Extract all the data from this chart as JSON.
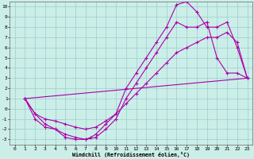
{
  "xlabel": "Windchill (Refroidissement éolien,°C)",
  "bg_color": "#cceee8",
  "grid_color": "#99cccc",
  "line_color": "#aa00aa",
  "xlim": [
    -0.5,
    23.5
  ],
  "ylim": [
    -3.5,
    10.5
  ],
  "xticks": [
    0,
    1,
    2,
    3,
    4,
    5,
    6,
    7,
    8,
    9,
    10,
    11,
    12,
    13,
    14,
    15,
    16,
    17,
    18,
    19,
    20,
    21,
    22,
    23
  ],
  "yticks": [
    -3,
    -2,
    -1,
    0,
    1,
    2,
    3,
    4,
    5,
    6,
    7,
    8,
    9,
    10
  ],
  "line1_x": [
    1,
    2,
    3,
    4,
    5,
    6,
    7,
    7.5,
    8,
    9,
    10,
    11,
    12,
    13,
    14,
    15,
    16,
    17,
    18,
    19,
    20,
    21,
    22,
    23
  ],
  "line1_y": [
    1,
    -1,
    -1.8,
    -2,
    -2.8,
    -3,
    -3,
    -2.8,
    -2.5,
    -1.5,
    -0.5,
    2,
    3.5,
    5,
    6.5,
    8,
    10.2,
    10.5,
    9.5,
    8,
    8,
    8.5,
    6,
    3
  ],
  "line2_x": [
    1,
    2,
    3,
    4,
    5,
    6,
    7,
    8,
    9,
    10,
    11,
    12,
    13,
    14,
    15,
    16,
    17,
    18,
    19,
    20,
    21,
    22,
    23
  ],
  "line2_y": [
    1,
    -0.5,
    -1.5,
    -2,
    -2.5,
    -2.8,
    -3,
    -2.8,
    -2,
    -1,
    1,
    2.5,
    4,
    5.5,
    7,
    8.5,
    8,
    8,
    8.5,
    5,
    3.5,
    3.5,
    3
  ],
  "line3_x": [
    1,
    2,
    3,
    4,
    5,
    6,
    7,
    8,
    9,
    10,
    11,
    12,
    13,
    14,
    15,
    16,
    17,
    18,
    19,
    20,
    21,
    22,
    23
  ],
  "line3_y": [
    1,
    -0.5,
    -1,
    -1.2,
    -1.5,
    -1.8,
    -2,
    -1.8,
    -1.2,
    -0.5,
    0.5,
    1.5,
    2.5,
    3.5,
    4.5,
    5.5,
    6,
    6.5,
    7,
    7,
    7.5,
    6.5,
    3
  ],
  "line4_x": [
    1,
    23
  ],
  "line4_y": [
    1,
    3
  ]
}
